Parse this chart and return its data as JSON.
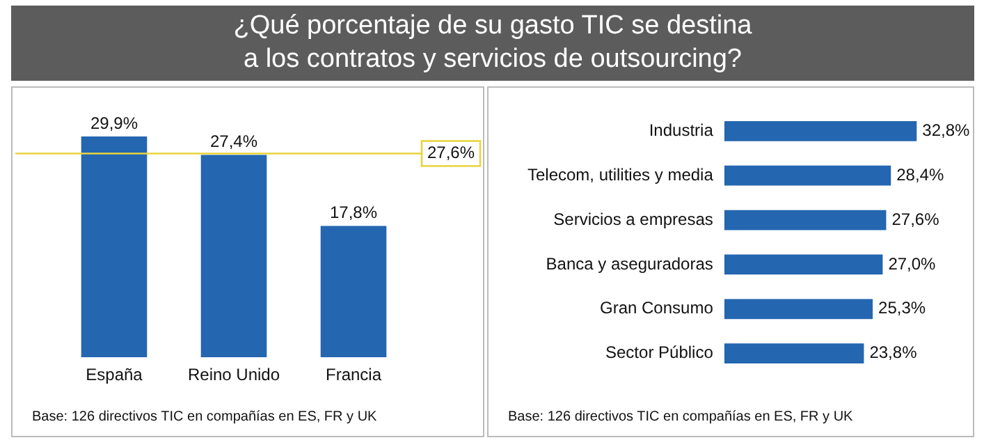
{
  "chart_data": [
    {
      "type": "bar",
      "title": "¿Qué porcentaje de su gasto TIC se destina\na los contratos y servicios de outsourcing?",
      "categories": [
        "España",
        "Reino Unido",
        "Francia"
      ],
      "values": [
        29.9,
        27.4,
        17.8
      ],
      "value_labels": [
        "29,9%",
        "27,4%",
        "17,8%"
      ],
      "color": "#2466b0",
      "ref_lines": [
        {
          "axis": "y",
          "value": 27.6,
          "label": "27,6%",
          "color": "#e8d43c"
        }
      ],
      "annotations": [
        "Base: 126 directivos TIC en compañías en ES, FR y UK"
      ],
      "legend": false,
      "grid": false
    },
    {
      "type": "bar",
      "orientation": "horizontal",
      "categories": [
        "Industria",
        "Telecom, utilities y media",
        "Servicios a empresas",
        "Banca y aseguradoras",
        "Gran Consumo",
        "Sector Público"
      ],
      "values": [
        32.8,
        28.4,
        27.6,
        27.0,
        25.3,
        23.8
      ],
      "value_labels": [
        "32,8%",
        "28,4%",
        "27,6%",
        "27,0%",
        "25,3%",
        "23,8%"
      ],
      "color": "#2466b0",
      "annotations": [
        "Base: 126 directivos TIC en compañías en ES, FR y UK"
      ],
      "legend": false,
      "grid": false
    }
  ]
}
